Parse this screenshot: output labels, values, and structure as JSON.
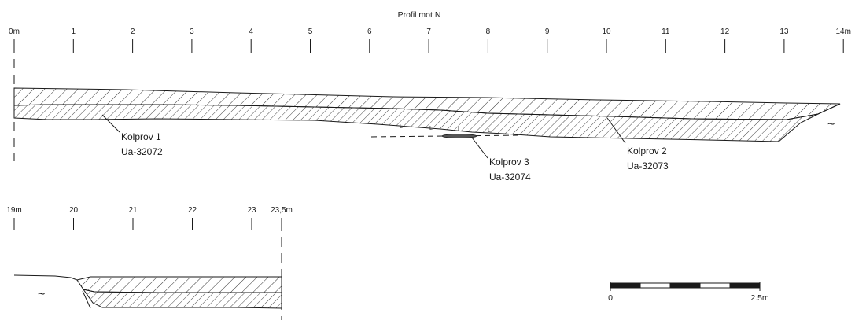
{
  "title": "Profil mot N",
  "upper_axis": {
    "ticks": [
      "0m",
      "1",
      "2",
      "3",
      "4",
      "5",
      "6",
      "7",
      "8",
      "9",
      "10",
      "11",
      "12",
      "13",
      "14m"
    ]
  },
  "lower_axis": {
    "ticks": [
      "19m",
      "20",
      "21",
      "22",
      "23",
      "23,5m"
    ]
  },
  "samples": [
    {
      "name": "Kolprov 1",
      "lab_id": "Ua-32072"
    },
    {
      "name": "Kolprov 3",
      "lab_id": "Ua-32074"
    },
    {
      "name": "Kolprov 2",
      "lab_id": "Ua-32073"
    }
  ],
  "symbols": {
    "water": "~",
    "stone": "L"
  },
  "scale_bar": {
    "start_label": "0",
    "end_label": "2.5m",
    "segments": 5
  }
}
